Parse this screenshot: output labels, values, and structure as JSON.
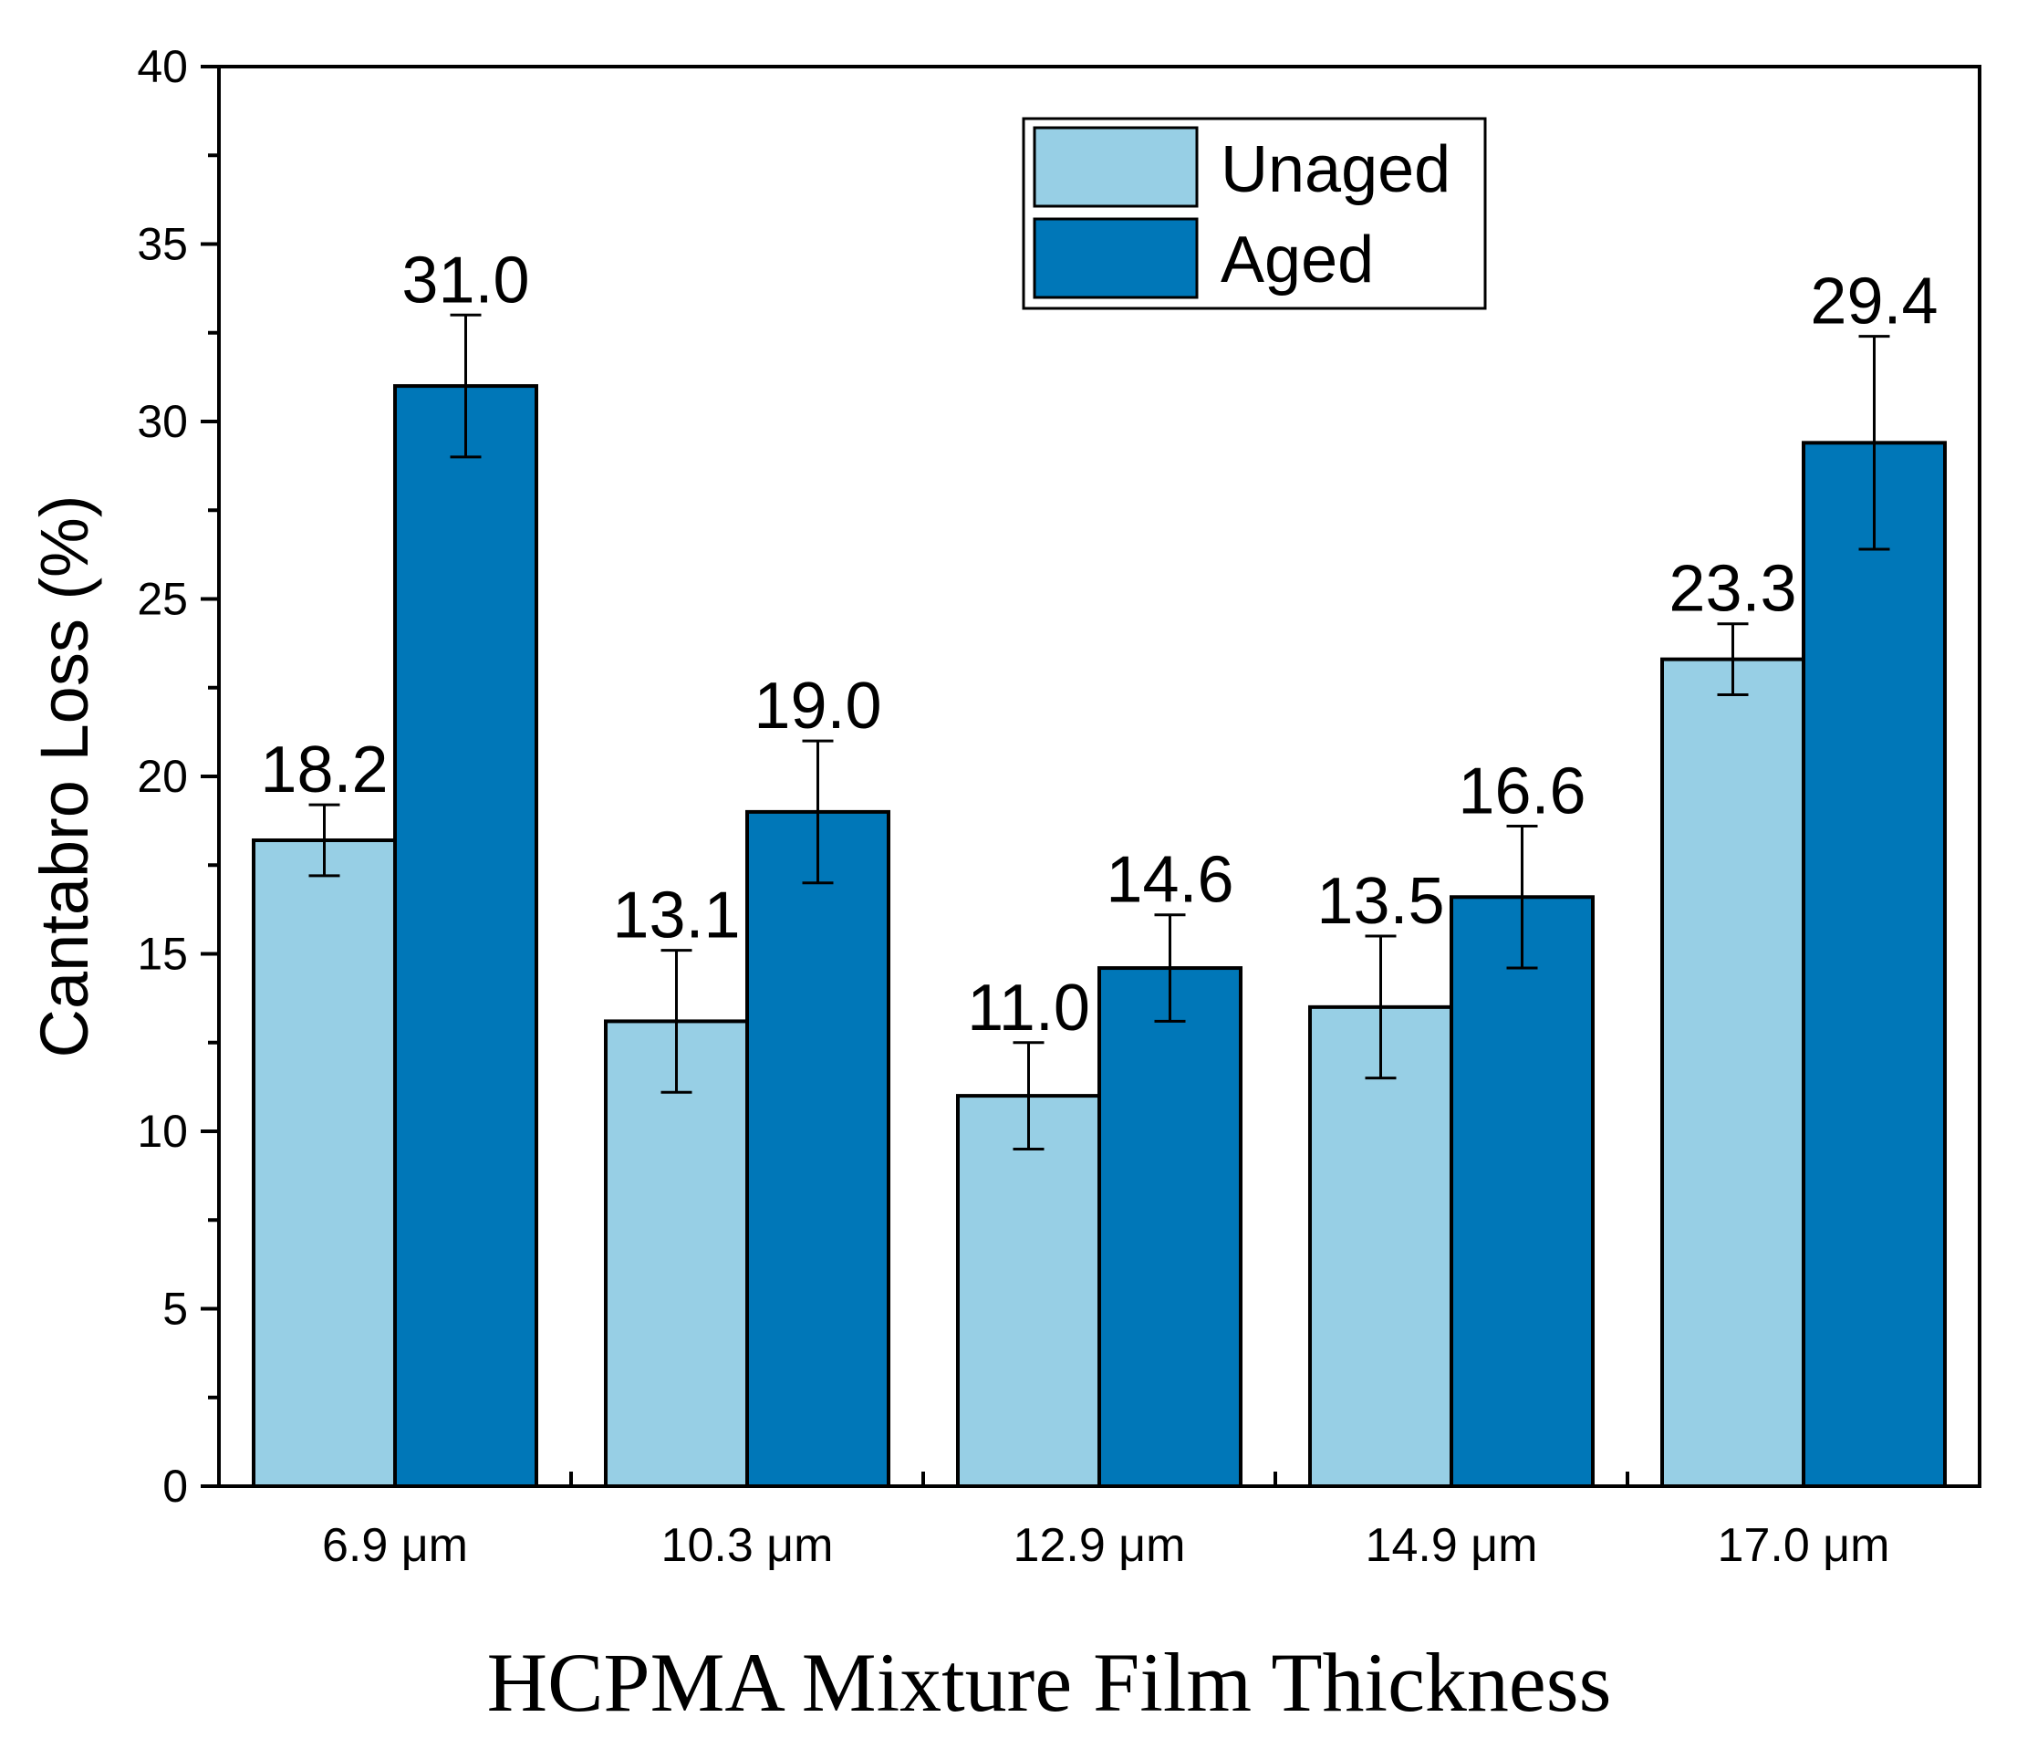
{
  "chart_data": {
    "type": "bar",
    "title": "",
    "xlabel": "HCPMA Mixture Film Thickness",
    "ylabel": "Cantabro Loss (%)",
    "ylim": [
      0,
      40
    ],
    "yticks": [
      0,
      5,
      10,
      15,
      20,
      25,
      30,
      35,
      40
    ],
    "categories": [
      "6.9 μm",
      "10.3 μm",
      "12.9 μm",
      "14.9 μm",
      "17.0 μm"
    ],
    "series": [
      {
        "name": "Unaged",
        "color": "#97CFE5",
        "values": [
          18.2,
          13.1,
          11.0,
          13.5,
          23.3
        ],
        "errors": [
          1.0,
          2.0,
          1.5,
          2.0,
          1.0
        ],
        "labels": [
          "18.2",
          "13.1",
          "11.0",
          "13.5",
          "23.3"
        ]
      },
      {
        "name": "Aged",
        "color": "#0077B8",
        "values": [
          31.0,
          19.0,
          14.6,
          16.6,
          29.4
        ],
        "errors": [
          2.0,
          2.0,
          1.5,
          2.0,
          3.0
        ],
        "labels": [
          "31.0",
          "19.0",
          "14.6",
          "16.6",
          "29.4"
        ]
      }
    ],
    "legend_position": "top-right",
    "grid": false
  }
}
